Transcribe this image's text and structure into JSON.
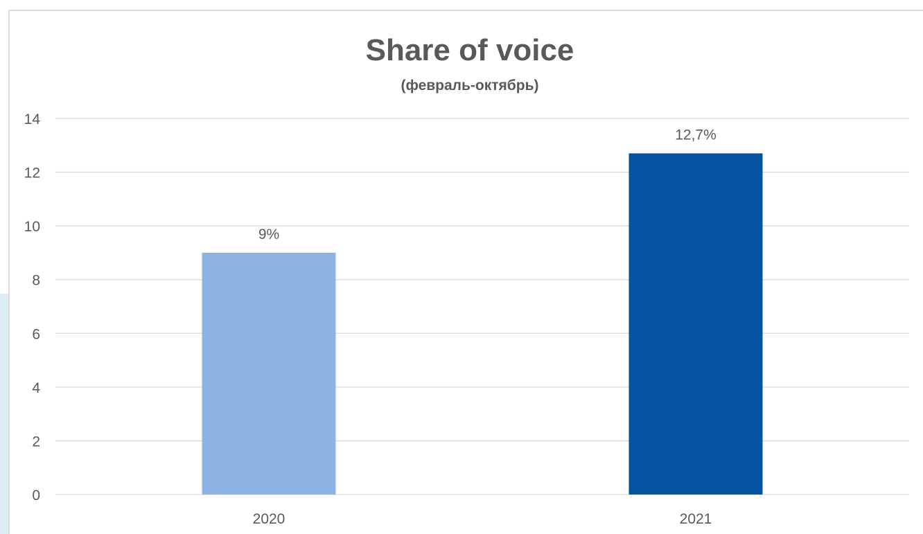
{
  "chart_data": {
    "type": "bar",
    "title": "Share of voice",
    "subtitle": "(февраль-октябрь)",
    "categories": [
      "2020",
      "2021"
    ],
    "values": [
      9,
      12.7
    ],
    "data_labels": [
      "9%",
      "12,7%"
    ],
    "bar_colors": [
      "#8eb4e3",
      "#0553a3"
    ],
    "ylim": [
      0,
      14
    ],
    "yticks": [
      0,
      2,
      4,
      6,
      8,
      10,
      12,
      14
    ],
    "grid": true,
    "legend": "none"
  },
  "colors": {
    "title": "#595959",
    "axis_text": "#595959",
    "gridline": "#d9d9d9"
  }
}
